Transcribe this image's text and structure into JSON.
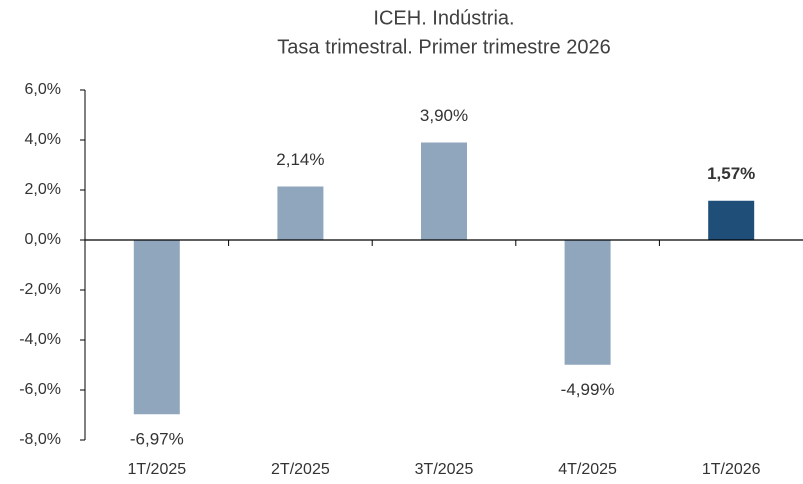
{
  "chart_data": {
    "type": "bar",
    "title": "ICEH. Indústria.",
    "subtitle": "Tasa trimestral. Primer trimestre 2026",
    "categories": [
      "1T/2025",
      "2T/2025",
      "3T/2025",
      "4T/2025",
      "1T/2026"
    ],
    "values": [
      -6.97,
      2.14,
      3.9,
      -4.99,
      1.57
    ],
    "value_labels": [
      "-6,97%",
      "2,14%",
      "3,90%",
      "-4,99%",
      "1,57%"
    ],
    "colors": [
      "#8fa6bd",
      "#8fa6bd",
      "#8fa6bd",
      "#8fa6bd",
      "#1f4e79"
    ],
    "highlight_index": 4,
    "ylim": [
      -8,
      6
    ],
    "yticks": [
      {
        "value": -8,
        "label": "-8,0%"
      },
      {
        "value": -6,
        "label": "-6,0%"
      },
      {
        "value": -4,
        "label": "-4,0%"
      },
      {
        "value": -2,
        "label": "-2,0%"
      },
      {
        "value": 0,
        "label": "0,0%"
      },
      {
        "value": 2,
        "label": "2,0%"
      },
      {
        "value": 4,
        "label": "4,0%"
      },
      {
        "value": 6,
        "label": "6,0%"
      }
    ],
    "grid": false
  }
}
